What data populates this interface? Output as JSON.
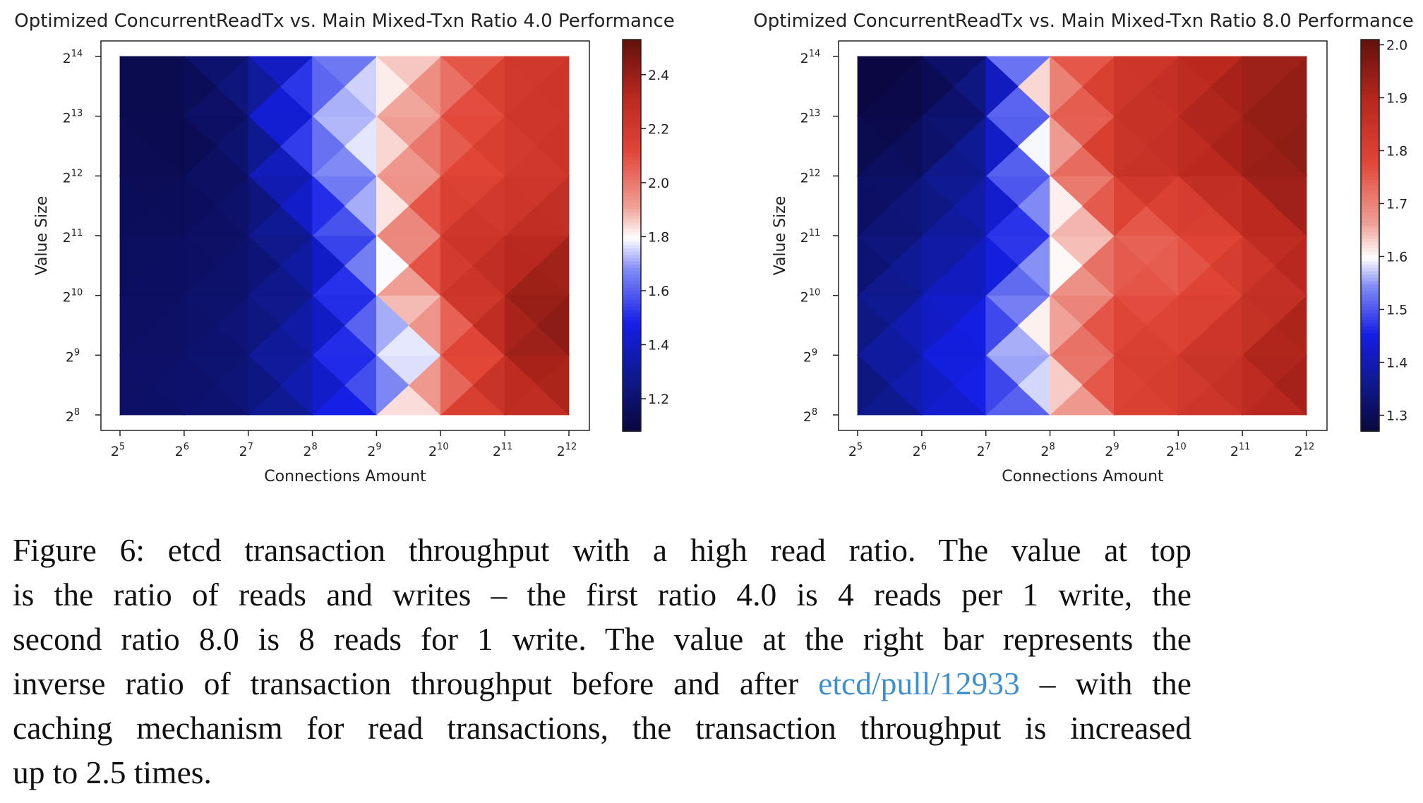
{
  "chart_data": [
    {
      "type": "heatmap",
      "title": "Optimized ConcurrentReadTx vs. Main Mixed-Txn Ratio 4.0 Performance",
      "xlabel": "Connections Amount",
      "ylabel": "Value Size",
      "x_base": "2",
      "x_exponents": [
        "5",
        "6",
        "7",
        "8",
        "9",
        "10",
        "11",
        "12"
      ],
      "y_base": "2",
      "y_exponents": [
        "8",
        "9",
        "10",
        "11",
        "12",
        "13",
        "14"
      ],
      "colorbar": {
        "min": 1.08,
        "max": 2.53,
        "center": 1.8,
        "ticks": [
          "1.2",
          "1.4",
          "1.6",
          "1.8",
          "2.0",
          "2.2",
          "2.4"
        ]
      },
      "values": [
        [
          1.18,
          1.2,
          1.22,
          1.36,
          1.6,
          2.12,
          2.24,
          2.3
        ],
        [
          1.18,
          1.19,
          1.24,
          1.4,
          1.62,
          1.88,
          2.34,
          2.44
        ],
        [
          1.17,
          1.18,
          1.22,
          1.32,
          1.7,
          2.12,
          2.36,
          2.46
        ],
        [
          1.16,
          1.17,
          1.19,
          1.38,
          1.74,
          2.22,
          2.26,
          2.34
        ],
        [
          1.15,
          1.14,
          1.21,
          1.54,
          1.8,
          2.08,
          2.18,
          2.24
        ],
        [
          1.14,
          1.12,
          1.24,
          1.66,
          1.82,
          2.02,
          2.2,
          2.26
        ],
        [
          1.12,
          1.14,
          1.28,
          1.5,
          1.76,
          1.96,
          2.2,
          2.22
        ]
      ]
    },
    {
      "type": "heatmap",
      "title": "Optimized ConcurrentReadTx vs. Main Mixed-Txn Ratio 8.0 Performance",
      "xlabel": "Connections Amount",
      "ylabel": "Value Size",
      "x_base": "2",
      "x_exponents": [
        "5",
        "6",
        "7",
        "8",
        "9",
        "10",
        "11",
        "12"
      ],
      "y_base": "2",
      "y_exponents": [
        "8",
        "9",
        "10",
        "11",
        "12",
        "13",
        "14"
      ],
      "colorbar": {
        "min": 1.27,
        "max": 2.01,
        "center": 1.6,
        "ticks": [
          "1.3",
          "1.4",
          "1.5",
          "1.6",
          "1.7",
          "1.8",
          "1.9",
          "2.0"
        ]
      },
      "values": [
        [
          1.32,
          1.4,
          1.45,
          1.55,
          1.78,
          1.82,
          1.86,
          1.92
        ],
        [
          1.35,
          1.42,
          1.48,
          1.66,
          1.8,
          1.82,
          1.88,
          1.95
        ],
        [
          1.33,
          1.4,
          1.44,
          1.62,
          1.77,
          1.76,
          1.82,
          1.9
        ],
        [
          1.32,
          1.36,
          1.4,
          1.53,
          1.74,
          1.74,
          1.84,
          1.92
        ],
        [
          1.3,
          1.33,
          1.4,
          1.62,
          1.84,
          1.86,
          1.92,
          1.96
        ],
        [
          1.28,
          1.29,
          1.36,
          1.66,
          1.84,
          1.88,
          1.94,
          1.96
        ],
        [
          1.27,
          1.28,
          1.36,
          1.7,
          1.82,
          1.86,
          1.92,
          1.94
        ]
      ]
    }
  ],
  "caption": {
    "lines": [
      "Figure 6: etcd transaction throughput with a high read ratio.  The value at top",
      "is the ratio of reads and writes – the first ratio 4.0 is 4 reads per 1 write, the",
      "second ratio 8.0 is 8 reads for 1 write.  The value at the right bar represents the"
    ],
    "line4_before": "inverse ratio of transaction throughput before and after ",
    "link_text": "etcd/pull/12933",
    "line4_after": " – with the",
    "line5": "caching mechanism for read transactions, the transaction throughput is increased",
    "line6": "up to 2.5 times."
  }
}
